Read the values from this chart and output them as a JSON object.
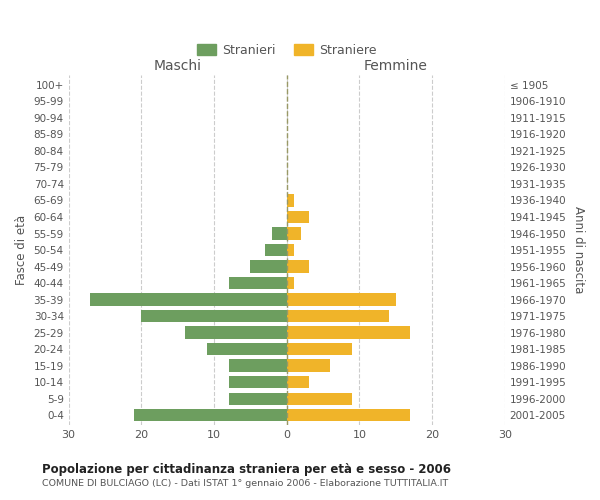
{
  "age_groups": [
    "0-4",
    "5-9",
    "10-14",
    "15-19",
    "20-24",
    "25-29",
    "30-34",
    "35-39",
    "40-44",
    "45-49",
    "50-54",
    "55-59",
    "60-64",
    "65-69",
    "70-74",
    "75-79",
    "80-84",
    "85-89",
    "90-94",
    "95-99",
    "100+"
  ],
  "birth_years": [
    "2001-2005",
    "1996-2000",
    "1991-1995",
    "1986-1990",
    "1981-1985",
    "1976-1980",
    "1971-1975",
    "1966-1970",
    "1961-1965",
    "1956-1960",
    "1951-1955",
    "1946-1950",
    "1941-1945",
    "1936-1940",
    "1931-1935",
    "1926-1930",
    "1921-1925",
    "1916-1920",
    "1911-1915",
    "1906-1910",
    "≤ 1905"
  ],
  "males": [
    21,
    8,
    8,
    8,
    11,
    14,
    20,
    27,
    8,
    5,
    3,
    2,
    0,
    0,
    0,
    0,
    0,
    0,
    0,
    0,
    0
  ],
  "females": [
    17,
    9,
    3,
    6,
    9,
    17,
    14,
    15,
    1,
    3,
    1,
    2,
    3,
    1,
    0,
    0,
    0,
    0,
    0,
    0,
    0
  ],
  "male_color": "#6d9e5f",
  "female_color": "#f0b429",
  "background_color": "#ffffff",
  "grid_color": "#cccccc",
  "title": "Popolazione per cittadinanza straniera per età e sesso - 2006",
  "subtitle": "COMUNE DI BULCIAGO (LC) - Dati ISTAT 1° gennaio 2006 - Elaborazione TUTTITALIA.IT",
  "xlabel_left": "Maschi",
  "xlabel_right": "Femmine",
  "ylabel_left": "Fasce di età",
  "ylabel_right": "Anni di nascita",
  "legend_males": "Stranieri",
  "legend_females": "Straniere",
  "xlim": 30,
  "bar_height": 0.75
}
